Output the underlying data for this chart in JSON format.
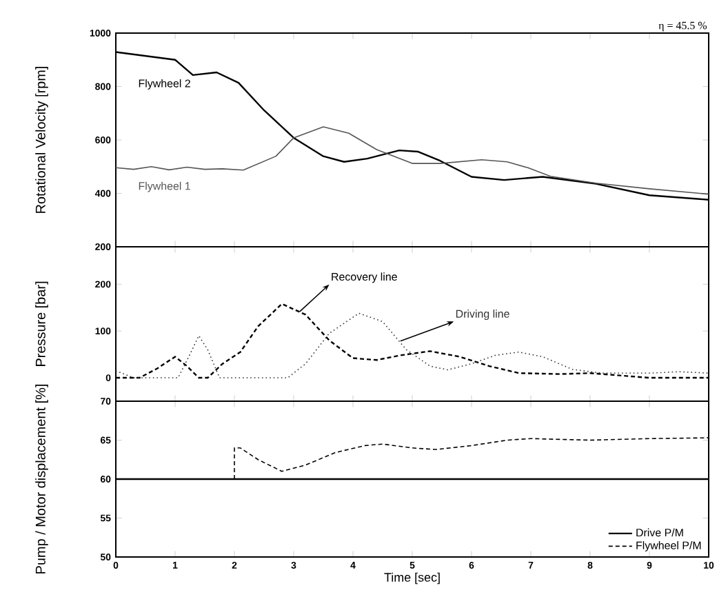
{
  "chart_data": [
    {
      "type": "line",
      "ylabel": "Rotational Velocity [rpm]",
      "xlim": [
        0,
        10
      ],
      "xticks": [
        0,
        1,
        2,
        3,
        4,
        5,
        6,
        7,
        8,
        9,
        10
      ],
      "ylim": [
        200,
        1000
      ],
      "yticks": [
        200,
        400,
        600,
        800,
        1000
      ],
      "tick_labels": "y",
      "annotations": [
        "η = 45.5 %"
      ],
      "series": [
        {
          "name": "Flywheel 2",
          "color": "#000000",
          "line_style": "solid",
          "x": [
            0,
            1.0,
            1.3,
            1.7,
            2.07,
            2.5,
            3.0,
            3.5,
            3.85,
            4.24,
            4.78,
            5.1,
            5.47,
            6.0,
            6.55,
            7.2,
            8.1,
            9.0,
            10
          ],
          "values": [
            929,
            900,
            843,
            853,
            814,
            711,
            608,
            539,
            518,
            530,
            561,
            556,
            522,
            462,
            450,
            462,
            436,
            393,
            376
          ]
        },
        {
          "name": "Flywheel 1",
          "color": "#555555",
          "line_style": "solid",
          "x": [
            0,
            0.3,
            0.6,
            0.9,
            1.2,
            1.5,
            1.8,
            2.15,
            2.7,
            3.0,
            3.5,
            3.93,
            4.4,
            5.0,
            5.47,
            6.17,
            6.6,
            6.95,
            7.33,
            8.1,
            9.0,
            10
          ],
          "values": [
            496,
            490,
            500,
            488,
            498,
            490,
            492,
            487,
            539,
            608,
            649,
            625,
            564,
            512,
            512,
            526,
            518,
            496,
            464,
            438,
            417,
            397
          ]
        }
      ]
    },
    {
      "type": "line",
      "ylabel": "Pressure [bar]",
      "xlim": [
        0,
        10
      ],
      "xticks": [
        0,
        1,
        2,
        3,
        4,
        5,
        6,
        7,
        8,
        9,
        10
      ],
      "ylim": [
        -50,
        280
      ],
      "yticks": [
        0,
        100,
        200
      ],
      "tick_labels": "y",
      "series": [
        {
          "name": "Recovery line",
          "color": "#000000",
          "line_style": "dashed",
          "x": [
            0,
            0.4,
            0.7,
            1.0,
            1.2,
            1.4,
            1.55,
            1.8,
            2.1,
            2.4,
            2.8,
            3.2,
            3.6,
            4.0,
            4.4,
            4.8,
            5.3,
            5.8,
            6.3,
            6.8,
            7.5,
            8.0,
            8.5,
            9.0,
            10
          ],
          "values": [
            0,
            0,
            20,
            45,
            25,
            0,
            0,
            30,
            55,
            110,
            158,
            135,
            80,
            42,
            38,
            48,
            57,
            45,
            25,
            10,
            8,
            10,
            5,
            0,
            0
          ]
        },
        {
          "name": "Driving line",
          "color": "#333333",
          "line_style": "dotted",
          "x": [
            0,
            0.3,
            1.05,
            1.25,
            1.4,
            1.55,
            1.75,
            2.9,
            3.2,
            3.6,
            4.1,
            4.5,
            4.9,
            5.3,
            5.6,
            6.0,
            6.4,
            6.8,
            7.2,
            7.7,
            8.2,
            9.0,
            9.5,
            10
          ],
          "values": [
            15,
            0,
            0,
            50,
            90,
            60,
            0,
            0,
            30,
            95,
            138,
            120,
            60,
            25,
            17,
            30,
            48,
            55,
            45,
            18,
            10,
            10,
            13,
            10
          ]
        }
      ]
    },
    {
      "type": "line",
      "ylabel": "Pump / Motor displacement [%]",
      "xlabel": "Time [sec]",
      "xlim": [
        0,
        10
      ],
      "xticks": [
        0,
        1,
        2,
        3,
        4,
        5,
        6,
        7,
        8,
        9,
        10
      ],
      "ylim": [
        50,
        70
      ],
      "yticks": [
        50,
        55,
        60,
        65,
        70
      ],
      "legend": "bottom right",
      "series": [
        {
          "name": "Drive P/M",
          "color": "#000000",
          "line_style": "solid",
          "x": [
            0,
            10
          ],
          "values": [
            60,
            60
          ]
        },
        {
          "name": "Flywheel P/M",
          "color": "#000000",
          "line_style": "dashed",
          "x": [
            2.0,
            2.0,
            2.1,
            2.4,
            2.8,
            3.2,
            3.7,
            4.2,
            4.5,
            5.0,
            5.4,
            6.0,
            6.6,
            7.0,
            8.0,
            9.0,
            10
          ],
          "values": [
            60,
            64,
            64,
            62.5,
            61,
            61.8,
            63.4,
            64.3,
            64.5,
            64,
            63.8,
            64.3,
            65,
            65.2,
            65,
            65.2,
            65.3
          ]
        }
      ]
    }
  ]
}
